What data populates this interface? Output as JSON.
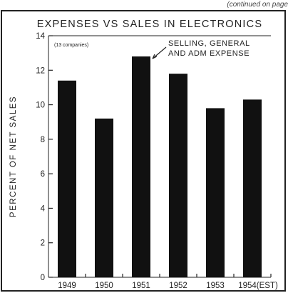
{
  "corner_note": "(continued on page",
  "chart_data": {
    "type": "bar",
    "title": "EXPENSES VS SALES IN ELECTRONICS",
    "note": "(13 companies)",
    "ylabel": "PERCENT OF NET SALES",
    "xlabel": "",
    "categories": [
      "1949",
      "1950",
      "1951",
      "1952",
      "1953",
      "1954(EST)"
    ],
    "series": [
      {
        "values": [
          11.4,
          9.2,
          12.8,
          11.8,
          9.8,
          10.3
        ]
      }
    ],
    "ylim": [
      0,
      14
    ],
    "yticks": [
      "0",
      "2",
      "4",
      "6",
      "8",
      "10",
      "12",
      "14"
    ],
    "annotation": {
      "line1": "SELLING, GENERAL",
      "line2": "AND ADM EXPENSE"
    },
    "grid": false,
    "bar_color": "#111111"
  }
}
